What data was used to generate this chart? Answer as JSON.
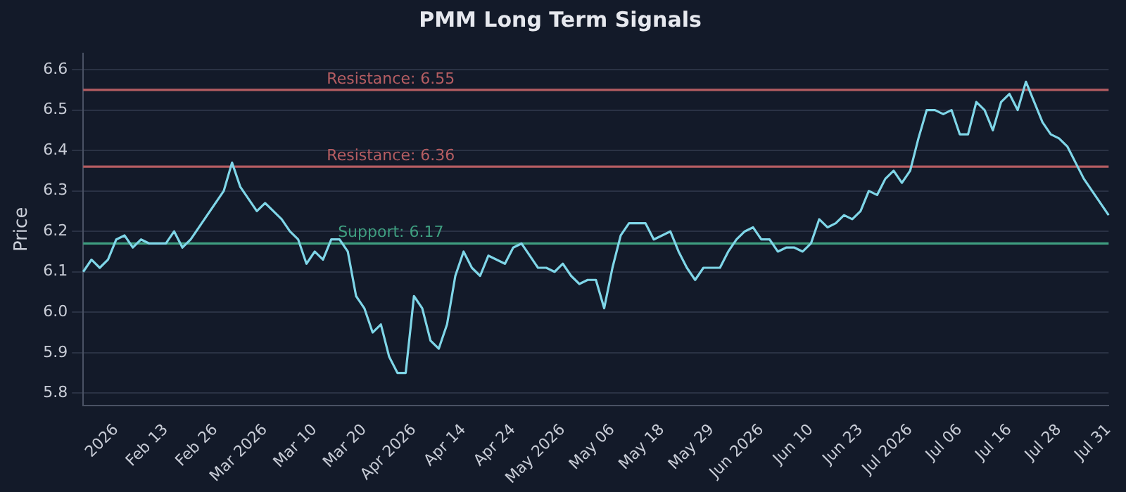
{
  "chart_data": {
    "type": "line",
    "title": "PMM Long Term Signals",
    "ylabel": "Price",
    "categories": [
      null,
      null,
      null,
      null,
      "2026",
      null,
      null,
      null,
      null,
      null,
      "Feb 13",
      null,
      null,
      null,
      null,
      null,
      "Feb 26",
      null,
      null,
      null,
      null,
      null,
      "Mar 2026",
      null,
      null,
      null,
      null,
      null,
      "Mar 10",
      null,
      null,
      null,
      null,
      null,
      "Mar 20",
      null,
      null,
      null,
      null,
      null,
      "Apr 2026",
      null,
      null,
      null,
      null,
      null,
      "Apr 14",
      null,
      null,
      null,
      null,
      null,
      "Apr 24",
      null,
      null,
      null,
      null,
      null,
      "May 2026",
      null,
      null,
      null,
      null,
      null,
      "May 06",
      null,
      null,
      null,
      null,
      null,
      "May 18",
      null,
      null,
      null,
      null,
      null,
      "May 29",
      null,
      null,
      null,
      null,
      null,
      "Jun 2026",
      null,
      null,
      null,
      null,
      null,
      "Jun 10",
      null,
      null,
      null,
      null,
      null,
      "Jun 23",
      null,
      null,
      null,
      null,
      null,
      "Jul 2026",
      null,
      null,
      null,
      null,
      null,
      "Jul 06",
      null,
      null,
      null,
      null,
      null,
      "Jul 16",
      null,
      null,
      null,
      null,
      null,
      "Jul 28",
      null,
      null,
      null,
      null,
      null,
      "Jul 31"
    ],
    "series": [
      {
        "color": "#7fd6e8",
        "values": [
          6.1,
          6.13,
          6.11,
          6.13,
          6.18,
          6.19,
          6.16,
          6.18,
          6.17,
          6.17,
          6.17,
          6.2,
          6.16,
          6.18,
          6.21,
          6.24,
          6.27,
          6.3,
          6.37,
          6.31,
          6.28,
          6.25,
          6.27,
          6.25,
          6.23,
          6.2,
          6.18,
          6.12,
          6.15,
          6.13,
          6.18,
          6.18,
          6.15,
          6.04,
          6.01,
          5.95,
          5.97,
          5.89,
          5.85,
          5.85,
          6.04,
          6.01,
          5.93,
          5.91,
          5.97,
          6.09,
          6.15,
          6.11,
          6.09,
          6.14,
          6.13,
          6.12,
          6.16,
          6.17,
          6.14,
          6.11,
          6.11,
          6.1,
          6.12,
          6.09,
          6.07,
          6.08,
          6.08,
          6.01,
          6.11,
          6.19,
          6.22,
          6.22,
          6.22,
          6.18,
          6.19,
          6.2,
          6.15,
          6.11,
          6.08,
          6.11,
          6.11,
          6.11,
          6.15,
          6.18,
          6.2,
          6.21,
          6.18,
          6.18,
          6.15,
          6.16,
          6.16,
          6.15,
          6.17,
          6.23,
          6.21,
          6.22,
          6.24,
          6.23,
          6.25,
          6.3,
          6.29,
          6.33,
          6.35,
          6.32,
          6.35,
          6.43,
          6.5,
          6.5,
          6.49,
          6.5,
          6.44,
          6.44,
          6.52,
          6.5,
          6.45,
          6.52,
          6.54,
          6.5,
          6.57,
          6.52,
          6.47,
          6.44,
          6.43,
          6.41,
          6.37,
          6.33,
          6.3,
          6.27,
          6.24
        ]
      }
    ],
    "ylim": [
      5.77,
      6.64
    ],
    "yticks": [
      5.8,
      5.9,
      {
        "value": 6,
        "label": "6.0"
      },
      6.1,
      6.2,
      6.3,
      6.4,
      6.5,
      6.6
    ],
    "grid": "y",
    "legend": false,
    "marker": "none",
    "line_style": "solid",
    "ref_lines": [
      {
        "axis": "y",
        "value": 6.55,
        "label": "Resistance: 6.55",
        "color": "#b55d62"
      },
      {
        "axis": "y",
        "value": 6.36,
        "label": "Resistance: 6.36",
        "color": "#b55d62"
      },
      {
        "axis": "y",
        "value": 6.17,
        "label": "Support: 6.17",
        "color": "#3f9e80"
      }
    ]
  }
}
